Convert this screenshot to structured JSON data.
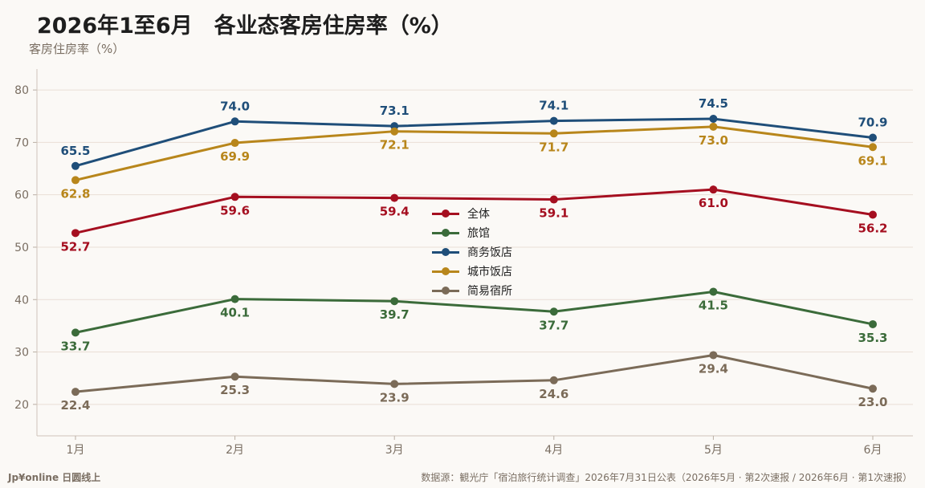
{
  "header": {
    "title": "2026年1至6月　各业态客房住房率（%）",
    "ylabel": "客房住房率（%）"
  },
  "footer": {
    "brand": "Jp¥online 日圆线上",
    "source": "数据源：観光庁「宿泊旅行统计调查」2026年7月31日公表（2026年5月 · 第2次速报 / 2026年6月 · 第1次速报）"
  },
  "chart_data": {
    "type": "line",
    "title": "2026年1至6月　各业态客房住房率（%）",
    "ylabel": "客房住房率（%）",
    "xlabel": "",
    "categories": [
      "1月",
      "2月",
      "3月",
      "4月",
      "5月",
      "6月"
    ],
    "ylim": [
      14,
      84
    ],
    "yticks": [
      20,
      30,
      40,
      50,
      60,
      70,
      80
    ],
    "grid": true,
    "legend_position": "center",
    "series": [
      {
        "name": "全体",
        "color": "#a50f20",
        "values": [
          52.7,
          59.6,
          59.4,
          59.1,
          61.0,
          56.2
        ],
        "label_pos": "below"
      },
      {
        "name": "旅馆",
        "color": "#3b6b3a",
        "values": [
          33.7,
          40.1,
          39.7,
          37.7,
          41.5,
          35.3
        ],
        "label_pos": "below"
      },
      {
        "name": "商务饭店",
        "color": "#1f4e79",
        "values": [
          65.5,
          74.0,
          73.1,
          74.1,
          74.5,
          70.9
        ],
        "label_pos": "above"
      },
      {
        "name": "城市饭店",
        "color": "#b8861b",
        "values": [
          62.8,
          69.9,
          72.1,
          71.7,
          73.0,
          69.1
        ],
        "label_pos": "below"
      },
      {
        "name": "简易宿所",
        "color": "#7b6b58",
        "values": [
          22.4,
          25.3,
          23.9,
          24.6,
          29.4,
          23.0
        ],
        "label_pos": "below"
      }
    ]
  }
}
